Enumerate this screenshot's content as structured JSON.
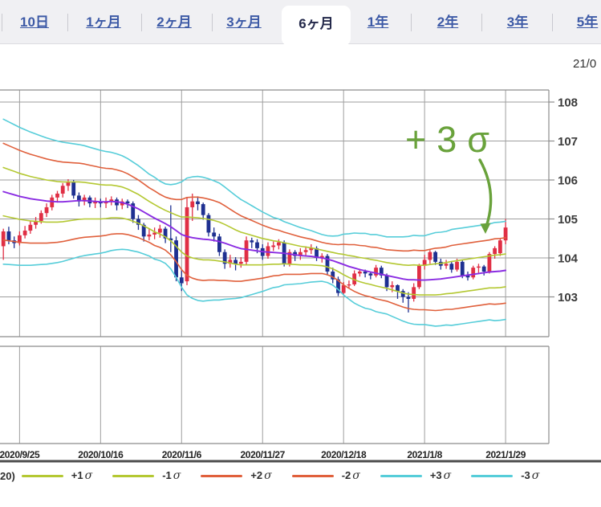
{
  "tabs": {
    "items": [
      {
        "label": "10日",
        "active": false
      },
      {
        "label": "1ヶ月",
        "active": false
      },
      {
        "label": "2ヶ月",
        "active": false
      },
      {
        "label": "3ヶ月",
        "active": false
      },
      {
        "label": "6ヶ月",
        "active": true
      },
      {
        "label": "1年",
        "active": false
      },
      {
        "label": "2年",
        "active": false
      },
      {
        "label": "3年",
        "active": false
      },
      {
        "label": "5年",
        "active": false
      }
    ]
  },
  "timestamp_fragment": "21/0",
  "annotation": {
    "text": "+3σ",
    "color": "#69a23b"
  },
  "legend": {
    "prefix": "20)",
    "items": [
      {
        "label": "+1σ",
        "color": "#b4c832"
      },
      {
        "label": "-1σ",
        "color": "#b4c832"
      },
      {
        "label": "+2σ",
        "color": "#e0603c"
      },
      {
        "label": "-2σ",
        "color": "#e0603c"
      },
      {
        "label": "+3σ",
        "color": "#56cdd9"
      },
      {
        "label": "-3σ",
        "color": "#56cdd9"
      }
    ]
  },
  "chart_data": {
    "type": "candlestick",
    "title": "",
    "instrument_hint": "price chart with Bollinger bands (MA20 ± 1/2/3 sigma)",
    "x_tick_labels": [
      "2020/9/25",
      "2020/10/16",
      "2020/11/6",
      "2020/11/27",
      "2020/12/18",
      "2021/1/8",
      "2021/1/29"
    ],
    "x_tick_day_index": [
      3,
      18,
      33,
      48,
      63,
      78,
      93
    ],
    "y_ticks": [
      108,
      107,
      106,
      105,
      104,
      103
    ],
    "ylim": [
      102.0,
      108.3
    ],
    "grid": true,
    "legend_position": "bottom",
    "colors": {
      "up_candle": "#e02f45",
      "down_candle": "#1e3091",
      "ma20": "#8a2ce2",
      "sigma1": "#b4c832",
      "sigma2": "#e0603c",
      "sigma3": "#56cdd9",
      "grid": "#9e9e9e",
      "border": "#8c8c8c",
      "axis_text": "#3c3c3c",
      "annotation": "#69a23b",
      "separator": "#4c4c4c"
    },
    "candles": [
      [
        104.3,
        104.75,
        103.95,
        104.68
      ],
      [
        104.68,
        104.8,
        104.35,
        104.45
      ],
      [
        104.45,
        104.55,
        104.25,
        104.38
      ],
      [
        104.38,
        104.68,
        104.32,
        104.58
      ],
      [
        104.58,
        104.82,
        104.5,
        104.7
      ],
      [
        104.7,
        104.95,
        104.62,
        104.85
      ],
      [
        104.85,
        105.05,
        104.75,
        104.95
      ],
      [
        104.95,
        105.22,
        104.88,
        105.15
      ],
      [
        105.15,
        105.4,
        105.05,
        105.3
      ],
      [
        105.3,
        105.62,
        105.22,
        105.55
      ],
      [
        105.55,
        105.72,
        105.42,
        105.65
      ],
      [
        105.65,
        105.92,
        105.55,
        105.85
      ],
      [
        105.85,
        106.02,
        105.72,
        105.95
      ],
      [
        105.95,
        106.0,
        105.52,
        105.6
      ],
      [
        105.6,
        105.68,
        105.32,
        105.45
      ],
      [
        105.45,
        105.62,
        105.35,
        105.55
      ],
      [
        105.55,
        105.6,
        105.3,
        105.4
      ],
      [
        105.4,
        105.55,
        105.28,
        105.45
      ],
      [
        105.45,
        105.52,
        105.3,
        105.4
      ],
      [
        105.4,
        105.55,
        105.28,
        105.45
      ],
      [
        105.45,
        105.58,
        105.35,
        105.5
      ],
      [
        105.5,
        105.55,
        105.22,
        105.35
      ],
      [
        105.35,
        105.52,
        105.25,
        105.45
      ],
      [
        105.45,
        105.5,
        105.28,
        105.4
      ],
      [
        105.4,
        105.45,
        104.9,
        105.0
      ],
      [
        105.0,
        105.1,
        104.72,
        104.85
      ],
      [
        104.85,
        104.9,
        104.42,
        104.55
      ],
      [
        104.55,
        104.75,
        104.45,
        104.6
      ],
      [
        104.6,
        104.78,
        104.48,
        104.65
      ],
      [
        104.65,
        104.85,
        104.52,
        104.75
      ],
      [
        104.75,
        104.8,
        104.38,
        104.5
      ],
      [
        104.5,
        105.35,
        104.15,
        104.45
      ],
      [
        104.45,
        104.55,
        103.4,
        103.5
      ],
      [
        103.5,
        103.7,
        103.15,
        103.35
      ],
      [
        103.4,
        105.55,
        103.3,
        105.3
      ],
      [
        105.3,
        105.65,
        104.95,
        105.45
      ],
      [
        105.45,
        105.58,
        105.22,
        105.38
      ],
      [
        105.38,
        105.42,
        104.98,
        105.1
      ],
      [
        105.1,
        105.15,
        104.55,
        104.65
      ],
      [
        104.65,
        104.78,
        104.42,
        104.55
      ],
      [
        104.55,
        104.62,
        104.05,
        104.15
      ],
      [
        104.15,
        104.22,
        103.72,
        103.85
      ],
      [
        103.85,
        104.08,
        103.75,
        103.95
      ],
      [
        103.95,
        104.02,
        103.68,
        103.85
      ],
      [
        103.85,
        104.02,
        103.75,
        103.9
      ],
      [
        103.9,
        104.55,
        103.82,
        104.45
      ],
      [
        104.45,
        104.52,
        104.25,
        104.4
      ],
      [
        104.4,
        104.48,
        104.12,
        104.25
      ],
      [
        104.25,
        104.35,
        103.95,
        104.05
      ],
      [
        104.05,
        104.4,
        103.98,
        104.3
      ],
      [
        104.28,
        104.42,
        104.18,
        104.32
      ],
      [
        104.32,
        104.48,
        104.22,
        104.4
      ],
      [
        104.4,
        104.45,
        103.78,
        103.85
      ],
      [
        103.85,
        104.22,
        103.78,
        104.15
      ],
      [
        104.15,
        104.2,
        103.92,
        104.05
      ],
      [
        104.05,
        104.25,
        103.95,
        104.15
      ],
      [
        104.15,
        104.3,
        104.05,
        104.2
      ],
      [
        104.2,
        104.35,
        104.1,
        104.25
      ],
      [
        104.25,
        104.3,
        103.92,
        104.0
      ],
      [
        104.0,
        104.12,
        103.88,
        104.05
      ],
      [
        104.05,
        104.1,
        103.55,
        103.65
      ],
      [
        103.65,
        103.75,
        103.35,
        103.45
      ],
      [
        103.45,
        103.52,
        103.02,
        103.1
      ],
      [
        103.1,
        103.38,
        103.05,
        103.3
      ],
      [
        103.3,
        103.42,
        103.22,
        103.32
      ],
      [
        103.32,
        103.68,
        103.28,
        103.6
      ],
      [
        103.6,
        103.72,
        103.52,
        103.65
      ],
      [
        103.65,
        103.7,
        103.5,
        103.6
      ],
      [
        103.6,
        103.65,
        103.45,
        103.55
      ],
      [
        103.55,
        103.82,
        103.5,
        103.75
      ],
      [
        103.75,
        103.8,
        103.48,
        103.55
      ],
      [
        103.55,
        103.6,
        103.15,
        103.25
      ],
      [
        103.25,
        103.4,
        103.12,
        103.3
      ],
      [
        103.3,
        103.32,
        102.95,
        103.15
      ],
      [
        103.15,
        103.2,
        102.85,
        103.0
      ],
      [
        103.0,
        103.12,
        102.6,
        102.95
      ],
      [
        102.95,
        103.35,
        102.88,
        103.25
      ],
      [
        103.25,
        103.85,
        103.2,
        103.8
      ],
      [
        103.8,
        104.08,
        103.7,
        103.95
      ],
      [
        103.95,
        104.2,
        103.85,
        104.15
      ],
      [
        104.15,
        104.18,
        103.82,
        103.9
      ],
      [
        103.9,
        103.98,
        103.7,
        103.8
      ],
      [
        103.8,
        103.95,
        103.72,
        103.85
      ],
      [
        103.85,
        103.9,
        103.62,
        103.7
      ],
      [
        103.7,
        103.98,
        103.65,
        103.9
      ],
      [
        103.9,
        103.95,
        103.48,
        103.55
      ],
      [
        103.55,
        103.65,
        103.42,
        103.5
      ],
      [
        103.5,
        103.8,
        103.45,
        103.75
      ],
      [
        103.75,
        103.85,
        103.62,
        103.78
      ],
      [
        103.78,
        103.82,
        103.55,
        103.65
      ],
      [
        103.65,
        104.15,
        103.6,
        104.1
      ],
      [
        104.1,
        104.3,
        103.98,
        104.25
      ],
      [
        104.12,
        104.5,
        104.05,
        104.45
      ],
      [
        104.45,
        105.0,
        104.35,
        104.78
      ]
    ],
    "ma20": [
      105.7,
      105.66,
      105.62,
      105.58,
      105.55,
      105.52,
      105.5,
      105.48,
      105.46,
      105.45,
      105.44,
      105.44,
      105.45,
      105.46,
      105.47,
      105.47,
      105.46,
      105.45,
      105.44,
      105.44,
      105.45,
      105.44,
      105.42,
      105.38,
      105.32,
      105.26,
      105.18,
      105.1,
      105.02,
      104.95,
      104.88,
      104.8,
      104.7,
      104.6,
      104.55,
      104.52,
      104.5,
      104.48,
      104.47,
      104.45,
      104.42,
      104.38,
      104.33,
      104.28,
      104.24,
      104.22,
      104.2,
      104.18,
      104.16,
      104.15,
      104.14,
      104.13,
      104.12,
      104.1,
      104.08,
      104.06,
      104.05,
      104.04,
      104.02,
      104.0,
      103.97,
      103.93,
      103.88,
      103.83,
      103.78,
      103.74,
      103.7,
      103.67,
      103.64,
      103.61,
      103.58,
      103.55,
      103.52,
      103.49,
      103.46,
      103.44,
      103.44,
      103.43,
      103.43,
      103.44,
      103.45,
      103.46,
      103.48,
      103.5,
      103.52,
      103.54,
      103.56,
      103.58,
      103.6,
      103.62,
      103.64,
      103.65,
      103.66,
      103.68
    ],
    "sigma": [
      0.62,
      0.61,
      0.6,
      0.59,
      0.58,
      0.57,
      0.56,
      0.55,
      0.54,
      0.53,
      0.52,
      0.51,
      0.5,
      0.49,
      0.48,
      0.47,
      0.46,
      0.45,
      0.44,
      0.43,
      0.42,
      0.41,
      0.4,
      0.39,
      0.38,
      0.37,
      0.36,
      0.35,
      0.35,
      0.34,
      0.34,
      0.36,
      0.4,
      0.45,
      0.5,
      0.52,
      0.53,
      0.53,
      0.52,
      0.51,
      0.5,
      0.48,
      0.46,
      0.44,
      0.42,
      0.4,
      0.38,
      0.36,
      0.34,
      0.32,
      0.3,
      0.29,
      0.27,
      0.26,
      0.25,
      0.24,
      0.23,
      0.22,
      0.21,
      0.2,
      0.2,
      0.21,
      0.23,
      0.26,
      0.28,
      0.3,
      0.31,
      0.32,
      0.32,
      0.33,
      0.33,
      0.33,
      0.34,
      0.35,
      0.36,
      0.37,
      0.38,
      0.38,
      0.38,
      0.39,
      0.4,
      0.4,
      0.4,
      0.41,
      0.41,
      0.41,
      0.41,
      0.41,
      0.41,
      0.41,
      0.41,
      0.42,
      0.42,
      0.42
    ]
  }
}
